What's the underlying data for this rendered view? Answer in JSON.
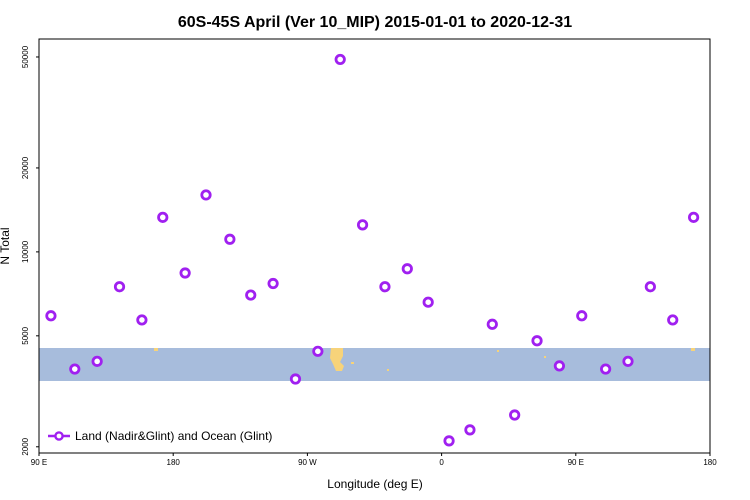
{
  "chart_data": {
    "type": "scatter",
    "title": "60S-45S April (Ver 10_MIP)   2015-01-01 to 2020-12-31",
    "xlabel": "Longitude (deg E)",
    "ylabel": "N Total",
    "y_scale": "log",
    "grid": false,
    "xlim": [
      90,
      540
    ],
    "ylim": [
      1900,
      58000
    ],
    "x_ticks": [
      {
        "value": 90,
        "label": "90 E"
      },
      {
        "value": 180,
        "label": "180"
      },
      {
        "value": 270,
        "label": "90 W"
      },
      {
        "value": 360,
        "label": "0"
      },
      {
        "value": 450,
        "label": "90 E"
      },
      {
        "value": 540,
        "label": "180"
      }
    ],
    "y_ticks": [
      {
        "value": 2000,
        "label": "2000"
      },
      {
        "value": 5000,
        "label": "5000"
      },
      {
        "value": 10000,
        "label": "10000"
      },
      {
        "value": 20000,
        "label": "20000"
      },
      {
        "value": 50000,
        "label": "50000"
      }
    ],
    "legend_position": "bottom-left",
    "series": [
      {
        "name": "Land (Nadir&Glint) and Ocean (Glint)",
        "color": "#a020f0",
        "marker": "open-circle",
        "points": [
          {
            "x": 98,
            "y": 5900
          },
          {
            "x": 114,
            "y": 3800
          },
          {
            "x": 129,
            "y": 4050
          },
          {
            "x": 144,
            "y": 7500
          },
          {
            "x": 159,
            "y": 5700
          },
          {
            "x": 173,
            "y": 13300
          },
          {
            "x": 188,
            "y": 8400
          },
          {
            "x": 202,
            "y": 16000
          },
          {
            "x": 218,
            "y": 11100
          },
          {
            "x": 232,
            "y": 7000
          },
          {
            "x": 247,
            "y": 7700
          },
          {
            "x": 262,
            "y": 3500
          },
          {
            "x": 277,
            "y": 4400
          },
          {
            "x": 292,
            "y": 49000
          },
          {
            "x": 307,
            "y": 12500
          },
          {
            "x": 322,
            "y": 7500
          },
          {
            "x": 337,
            "y": 8700
          },
          {
            "x": 351,
            "y": 6600
          },
          {
            "x": 365,
            "y": 2100
          },
          {
            "x": 379,
            "y": 2300
          },
          {
            "x": 394,
            "y": 5500
          },
          {
            "x": 409,
            "y": 2600
          },
          {
            "x": 424,
            "y": 4800
          },
          {
            "x": 439,
            "y": 3900
          },
          {
            "x": 454,
            "y": 5900
          },
          {
            "x": 470,
            "y": 3800
          },
          {
            "x": 485,
            "y": 4050
          },
          {
            "x": 500,
            "y": 7500
          },
          {
            "x": 515,
            "y": 5700
          },
          {
            "x": 529,
            "y": 13300
          }
        ]
      }
    ]
  }
}
